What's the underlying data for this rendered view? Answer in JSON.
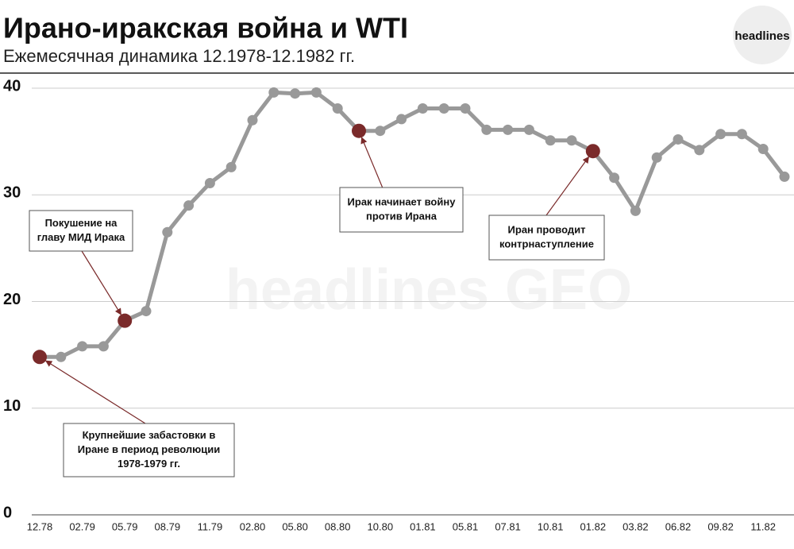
{
  "chart_data": {
    "type": "line",
    "title": "Ирано-иракская война и WTI",
    "subtitle": "Ежемесячная динамика 12.1978-12.1982 гг.",
    "logo": "headlines",
    "watermark": "headlines GEO",
    "categories": [
      "12.78",
      null,
      "02.79",
      null,
      "05.79",
      null,
      "08.79",
      null,
      "11.79",
      null,
      "02.80",
      null,
      "05.80",
      null,
      "08.80",
      null,
      "10.80",
      null,
      "01.81",
      null,
      "05.81",
      null,
      "07.81",
      null,
      "10.81",
      null,
      "01.82",
      null,
      "03.82",
      null,
      "06.82",
      null,
      "09.82",
      null,
      "11.82",
      null
    ],
    "series": [
      {
        "name": "WTI",
        "color": "#999999",
        "values": [
          14.8,
          14.8,
          15.8,
          15.8,
          18.2,
          19.1,
          26.5,
          29.0,
          31.1,
          32.6,
          37.0,
          39.6,
          39.5,
          39.6,
          38.1,
          36.0,
          36.0,
          37.1,
          38.1,
          38.1,
          38.1,
          36.1,
          36.1,
          36.1,
          35.1,
          35.1,
          34.1,
          31.6,
          28.5,
          33.5,
          35.2,
          34.2,
          35.7,
          35.7,
          34.3,
          31.7
        ]
      }
    ],
    "highlight_color": "#7a2a2a",
    "annotations": [
      {
        "index": 0,
        "lines": [
          "Крупнейшие забастовки в",
          "Иране в период революции",
          "1978-1979 гг."
        ]
      },
      {
        "index": 4,
        "lines": [
          "Покушение на",
          "главу МИД Ирака"
        ]
      },
      {
        "index": 15,
        "lines": [
          "Ирак начинает войну",
          "против Ирана"
        ]
      },
      {
        "index": 26,
        "lines": [
          "Иран проводит",
          "контрнаступление"
        ]
      }
    ],
    "ylim": [
      0,
      40
    ],
    "yticks": [
      0,
      10,
      20,
      30,
      40
    ],
    "grid": true
  }
}
